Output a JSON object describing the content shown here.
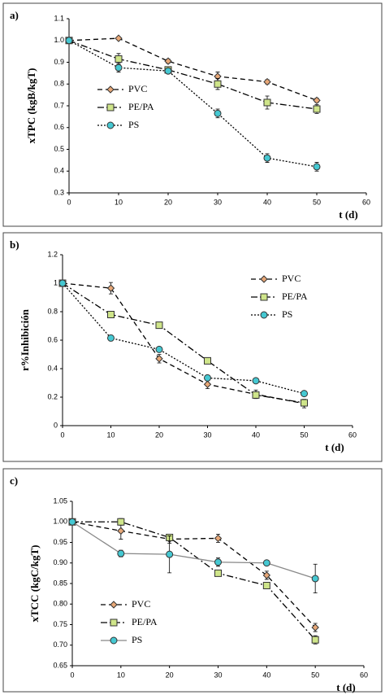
{
  "chart_data": [
    {
      "type": "line",
      "panel_label": "a)",
      "y_label": "xTPC (kgB/kgT)",
      "x_label": "t (d)",
      "x": [
        0,
        10,
        20,
        30,
        40,
        50
      ],
      "xlim": [
        0,
        60
      ],
      "xticks": [
        0,
        10,
        20,
        30,
        40,
        50,
        60
      ],
      "ylim": [
        0.3,
        1.1
      ],
      "yticks": [
        0.3,
        0.4,
        0.5,
        0.6,
        0.7,
        0.8,
        0.9,
        {
          "value": 1,
          "label": "1.0"
        },
        1.1
      ],
      "legend": "center left",
      "series": [
        {
          "name": "PVC",
          "marker": "diamond",
          "color": "#e8a878",
          "line_style": "dashed",
          "line_color": "#000",
          "values": [
            1.0,
            1.01,
            0.905,
            0.835,
            0.81,
            0.725
          ],
          "errors": [
            0,
            0.005,
            0.01,
            0.02,
            0.01,
            0.01
          ]
        },
        {
          "name": "PE/PA",
          "marker": "square",
          "color": "#cfe58a",
          "line_style": "dashdot",
          "line_color": "#000",
          "values": [
            1.0,
            0.915,
            0.865,
            0.8,
            0.715,
            0.685
          ],
          "errors": [
            0,
            0.025,
            0.01,
            0.025,
            0.03,
            0.02
          ]
        },
        {
          "name": "PS",
          "marker": "circle",
          "color": "#45c8d2",
          "line_style": "dotted",
          "line_color": "#000",
          "values": [
            1.0,
            0.875,
            0.86,
            0.665,
            0.46,
            0.42
          ],
          "errors": [
            0,
            0.02,
            0.01,
            0.02,
            0.02,
            0.02
          ]
        }
      ]
    },
    {
      "type": "line",
      "panel_label": "b)",
      "y_label": "r%Inhibición",
      "x_label": "t (d)",
      "x": [
        0,
        10,
        20,
        30,
        40,
        50
      ],
      "xlim": [
        0,
        60
      ],
      "xticks": [
        0,
        10,
        20,
        30,
        40,
        50,
        60
      ],
      "ylim": [
        0,
        1.2
      ],
      "yticks": [
        0,
        0.2,
        0.4,
        0.6,
        0.8,
        1,
        1.2
      ],
      "legend": "upper right",
      "series": [
        {
          "name": "PVC",
          "marker": "diamond",
          "color": "#e8a878",
          "line_style": "dashed",
          "line_color": "#000",
          "values": [
            1.0,
            0.965,
            0.47,
            0.29,
            0.22,
            0.155
          ],
          "errors": [
            0,
            0.04,
            0.03,
            0.03,
            0.03,
            0.03
          ]
        },
        {
          "name": "PE/PA",
          "marker": "square",
          "color": "#cfe58a",
          "line_style": "dashdot",
          "line_color": "#000",
          "values": [
            1.0,
            0.78,
            0.705,
            0.455,
            0.215,
            0.16
          ],
          "errors": [
            0,
            0.01,
            0.01,
            0.01,
            0.02,
            0.02
          ]
        },
        {
          "name": "PS",
          "marker": "circle",
          "color": "#45c8d2",
          "line_style": "dotted",
          "line_color": "#000",
          "values": [
            1.0,
            0.615,
            0.535,
            0.335,
            0.315,
            0.225
          ],
          "errors": [
            0,
            0.02,
            0.01,
            0.01,
            0.01,
            0.01
          ]
        }
      ]
    },
    {
      "type": "line",
      "panel_label": "c)",
      "y_label": "xTCC (kgC/kgT)",
      "x_label": "t (d)",
      "x": [
        0,
        10,
        20,
        30,
        40,
        50
      ],
      "xlim": [
        0,
        60
      ],
      "xticks": [
        0,
        10,
        20,
        30,
        40,
        50,
        60
      ],
      "ylim": [
        0.65,
        1.05
      ],
      "yticks": [
        0.65,
        {
          "value": 0.7,
          "label": "0.70"
        },
        0.75,
        {
          "value": 0.8,
          "label": "0.80"
        },
        0.85,
        {
          "value": 0.9,
          "label": "0.90"
        },
        0.95,
        {
          "value": 1,
          "label": "1.00"
        },
        1.05
      ],
      "legend": "lower left",
      "series": [
        {
          "name": "PVC",
          "marker": "diamond",
          "color": "#e8a878",
          "line_style": "dashed",
          "line_color": "#000",
          "values": [
            1.0,
            0.978,
            0.958,
            0.96,
            0.87,
            0.743
          ],
          "errors": [
            0,
            0.02,
            0.01,
            0.01,
            0.01,
            0.01
          ]
        },
        {
          "name": "PE/PA",
          "marker": "square",
          "color": "#cfe58a",
          "line_style": "dashdot",
          "line_color": "#000",
          "values": [
            1.0,
            1.0,
            0.962,
            0.875,
            0.845,
            0.713
          ],
          "errors": [
            0,
            0.008,
            0.005,
            0.005,
            0.008,
            0.01
          ]
        },
        {
          "name": "PS",
          "marker": "circle",
          "color": "#45c8d2",
          "line_style": "solid",
          "line_color": "#888",
          "values": [
            1.0,
            0.923,
            0.921,
            0.902,
            0.9,
            0.862
          ],
          "errors": [
            0,
            0.008,
            0.045,
            0.01,
            0.005,
            0.035
          ]
        }
      ]
    }
  ]
}
